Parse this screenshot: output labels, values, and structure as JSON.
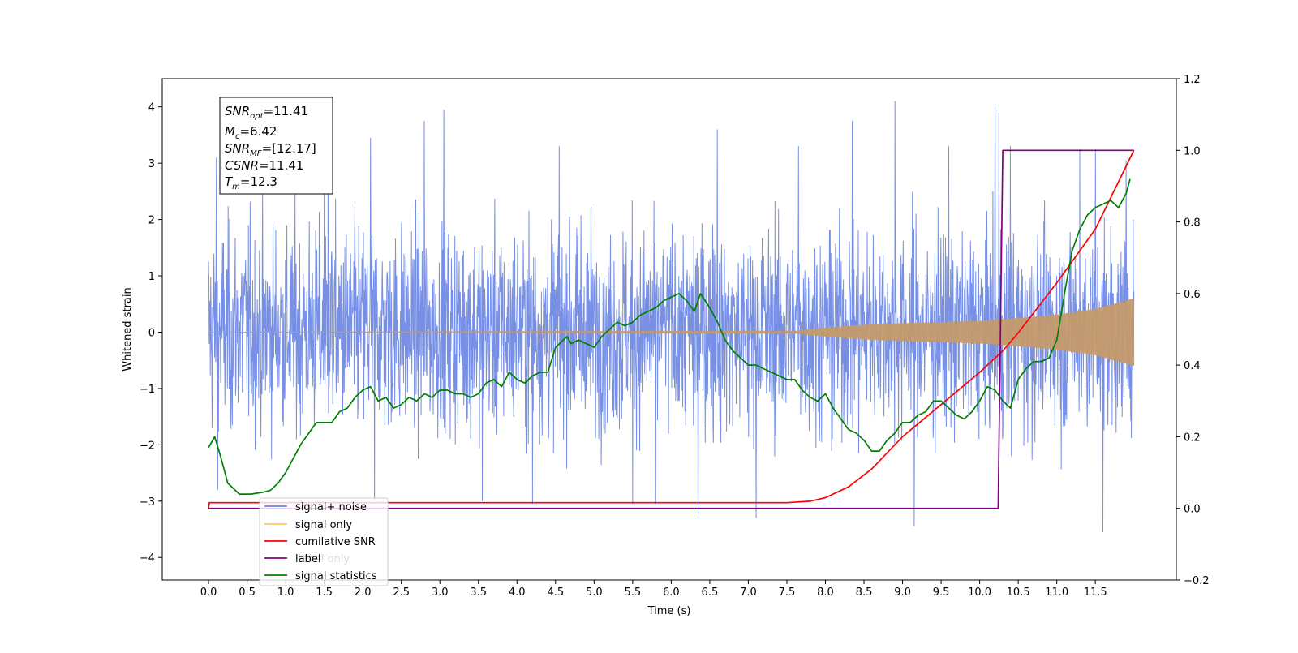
{
  "chart_data": {
    "type": "line",
    "xlabel": "Time (s)",
    "ylabel": "Whitened strain",
    "xlim": [
      -0.6,
      12.55
    ],
    "ylim": [
      -4.4,
      4.5
    ],
    "y2lim": [
      -0.2,
      1.2
    ],
    "x_ticks": [
      0.0,
      0.5,
      1.0,
      1.5,
      2.0,
      2.5,
      3.0,
      3.5,
      4.0,
      4.5,
      5.0,
      5.5,
      6.0,
      6.5,
      7.0,
      7.5,
      8.0,
      8.5,
      9.0,
      9.5,
      10.0,
      10.5,
      11.0,
      11.5
    ],
    "x_tick_labels": [
      "0.0",
      "0.5",
      "1.0",
      "1.5",
      "2.0",
      "2.5",
      "3.0",
      "3.5",
      "4.0",
      "4.5",
      "5.0",
      "5.5",
      "6.0",
      "6.5",
      "7.0",
      "7.5",
      "8.0",
      "8.5",
      "9.0",
      "9.5",
      "10.0",
      "10.5",
      "11.0",
      "11.5"
    ],
    "y_ticks": [
      -4,
      -3,
      -2,
      -1,
      0,
      1,
      2,
      3,
      4
    ],
    "y_tick_labels": [
      "−4",
      "−3",
      "−2",
      "−1",
      "0",
      "1",
      "2",
      "3",
      "4"
    ],
    "y2_ticks": [
      -0.2,
      0.0,
      0.2,
      0.4,
      0.6,
      0.8,
      1.0,
      1.2
    ],
    "y2_tick_labels": [
      "−0.2",
      "0.0",
      "0.2",
      "0.4",
      "0.6",
      "0.8",
      "1.0",
      "1.2"
    ],
    "grid": false,
    "legend_position": "lower-left",
    "legend": [
      {
        "label": "signal+ noise",
        "color": "#6b87e3"
      },
      {
        "label": "signal only",
        "color": "#ffc266"
      },
      {
        "label": "cumilative SNR",
        "color": "#ff0000"
      },
      {
        "label": "label",
        "color": "#800080"
      },
      {
        "label": "signal statistics",
        "color": "#008000"
      }
    ],
    "hidden_legend_text": "label only",
    "annotation": {
      "lines": [
        {
          "sym": "SNR",
          "sub": "opt",
          "value": "=11.41"
        },
        {
          "sym": "M",
          "sub": "c",
          "value": "=6.42"
        },
        {
          "sym": "SNR",
          "sub": "MF",
          "value": "=[12.17]"
        },
        {
          "sym": "CSNR",
          "sub": "",
          "value": "=11.41"
        },
        {
          "sym": "T",
          "sub": "m",
          "value": "=12.3"
        }
      ]
    },
    "series": [
      {
        "name": "signal+ noise",
        "axis": "left",
        "color": "#6b87e3",
        "style": "noise",
        "x_range": [
          0.0,
          12.0
        ],
        "typical_range": [
          -2.5,
          2.6
        ],
        "spikes": [
          {
            "x": 0.1,
            "y": 3.1
          },
          {
            "x": 0.12,
            "y": -2.8
          },
          {
            "x": 1.5,
            "y": 3.0
          },
          {
            "x": 1.55,
            "y": 3.7
          },
          {
            "x": 2.1,
            "y": 3.45
          },
          {
            "x": 2.15,
            "y": -3.0
          },
          {
            "x": 2.8,
            "y": 3.75
          },
          {
            "x": 3.05,
            "y": 3.95
          },
          {
            "x": 3.55,
            "y": -3.0
          },
          {
            "x": 4.2,
            "y": -3.05
          },
          {
            "x": 4.55,
            "y": 3.3
          },
          {
            "x": 5.5,
            "y": -3.05
          },
          {
            "x": 5.8,
            "y": -3.05
          },
          {
            "x": 6.35,
            "y": -3.3
          },
          {
            "x": 6.6,
            "y": 3.6
          },
          {
            "x": 7.1,
            "y": -3.3
          },
          {
            "x": 7.65,
            "y": 3.3
          },
          {
            "x": 8.35,
            "y": 3.75
          },
          {
            "x": 8.9,
            "y": 4.1
          },
          {
            "x": 9.15,
            "y": -3.45
          },
          {
            "x": 9.6,
            "y": 3.3
          },
          {
            "x": 10.2,
            "y": 4.0
          },
          {
            "x": 10.25,
            "y": 3.9
          },
          {
            "x": 10.4,
            "y": 3.3
          },
          {
            "x": 11.3,
            "y": 3.25
          },
          {
            "x": 11.5,
            "y": 3.25
          },
          {
            "x": 11.6,
            "y": -3.55
          },
          {
            "x": 11.9,
            "y": 3.05
          }
        ]
      },
      {
        "name": "signal only",
        "axis": "left",
        "color": "#c49a6c",
        "style": "chirp",
        "x_range": [
          0.0,
          12.0
        ],
        "envelope": [
          {
            "x": 0.0,
            "y": 0.0
          },
          {
            "x": 7.5,
            "y": 0.01
          },
          {
            "x": 8.0,
            "y": 0.08
          },
          {
            "x": 8.5,
            "y": 0.13
          },
          {
            "x": 9.0,
            "y": 0.16
          },
          {
            "x": 9.5,
            "y": 0.18
          },
          {
            "x": 10.0,
            "y": 0.2
          },
          {
            "x": 10.5,
            "y": 0.25
          },
          {
            "x": 11.0,
            "y": 0.31
          },
          {
            "x": 11.5,
            "y": 0.41
          },
          {
            "x": 12.0,
            "y": 0.6
          }
        ]
      },
      {
        "name": "cumilative SNR",
        "axis": "right",
        "color": "#ff0000",
        "x": [
          0.0,
          0.01,
          2.0,
          4.0,
          6.0,
          7.5,
          7.8,
          8.0,
          8.3,
          8.6,
          9.0,
          9.5,
          10.0,
          10.3,
          10.5,
          11.0,
          11.5,
          12.0
        ],
        "y": [
          0.0,
          0.016,
          0.016,
          0.016,
          0.016,
          0.016,
          0.02,
          0.03,
          0.06,
          0.11,
          0.2,
          0.29,
          0.38,
          0.44,
          0.49,
          0.63,
          0.78,
          1.0
        ]
      },
      {
        "name": "label",
        "axis": "right",
        "color": "#800080",
        "x": [
          0.0,
          10.24,
          10.3,
          12.0
        ],
        "y": [
          0.0,
          0.0,
          1.0,
          1.0
        ]
      },
      {
        "name": "signal statistics",
        "axis": "right",
        "color": "#008000",
        "x": [
          0.0,
          0.08,
          0.15,
          0.25,
          0.4,
          0.55,
          0.7,
          0.8,
          0.9,
          1.0,
          1.1,
          1.2,
          1.3,
          1.4,
          1.5,
          1.6,
          1.7,
          1.8,
          1.9,
          2.0,
          2.1,
          2.2,
          2.3,
          2.4,
          2.5,
          2.6,
          2.7,
          2.8,
          2.9,
          3.0,
          3.1,
          3.2,
          3.3,
          3.4,
          3.5,
          3.6,
          3.7,
          3.8,
          3.9,
          4.0,
          4.1,
          4.2,
          4.3,
          4.4,
          4.5,
          4.6,
          4.65,
          4.7,
          4.8,
          4.9,
          5.0,
          5.1,
          5.2,
          5.3,
          5.4,
          5.5,
          5.6,
          5.7,
          5.8,
          5.9,
          6.0,
          6.1,
          6.2,
          6.3,
          6.38,
          6.5,
          6.6,
          6.7,
          6.8,
          6.9,
          7.0,
          7.1,
          7.2,
          7.3,
          7.4,
          7.5,
          7.6,
          7.7,
          7.8,
          7.9,
          8.0,
          8.1,
          8.2,
          8.3,
          8.4,
          8.5,
          8.6,
          8.7,
          8.8,
          8.9,
          9.0,
          9.1,
          9.2,
          9.3,
          9.4,
          9.5,
          9.6,
          9.7,
          9.8,
          9.9,
          10.0,
          10.1,
          10.2,
          10.3,
          10.4,
          10.5,
          10.6,
          10.7,
          10.8,
          10.9,
          11.0,
          11.1,
          11.2,
          11.3,
          11.4,
          11.5,
          11.6,
          11.7,
          11.8,
          11.9,
          11.95
        ],
        "y": [
          0.17,
          0.2,
          0.15,
          0.07,
          0.04,
          0.04,
          0.045,
          0.05,
          0.07,
          0.1,
          0.14,
          0.18,
          0.21,
          0.24,
          0.24,
          0.24,
          0.27,
          0.28,
          0.31,
          0.33,
          0.34,
          0.3,
          0.31,
          0.28,
          0.29,
          0.31,
          0.3,
          0.32,
          0.31,
          0.33,
          0.33,
          0.32,
          0.32,
          0.31,
          0.32,
          0.35,
          0.36,
          0.34,
          0.38,
          0.36,
          0.35,
          0.37,
          0.38,
          0.38,
          0.45,
          0.47,
          0.48,
          0.46,
          0.47,
          0.46,
          0.45,
          0.48,
          0.5,
          0.52,
          0.51,
          0.52,
          0.54,
          0.55,
          0.56,
          0.58,
          0.59,
          0.6,
          0.58,
          0.55,
          0.6,
          0.56,
          0.52,
          0.47,
          0.44,
          0.42,
          0.4,
          0.4,
          0.39,
          0.38,
          0.37,
          0.36,
          0.36,
          0.33,
          0.31,
          0.3,
          0.32,
          0.28,
          0.25,
          0.22,
          0.21,
          0.19,
          0.16,
          0.16,
          0.19,
          0.21,
          0.24,
          0.24,
          0.26,
          0.27,
          0.3,
          0.3,
          0.28,
          0.26,
          0.25,
          0.27,
          0.3,
          0.34,
          0.33,
          0.3,
          0.28,
          0.36,
          0.39,
          0.41,
          0.41,
          0.42,
          0.47,
          0.6,
          0.72,
          0.78,
          0.82,
          0.84,
          0.85,
          0.86,
          0.84,
          0.88,
          0.92
        ]
      }
    ]
  }
}
